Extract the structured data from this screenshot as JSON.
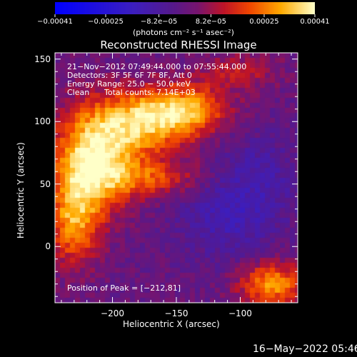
{
  "chart_data": {
    "type": "heatmap",
    "title": "Reconstructed RHESSI Image",
    "xlabel": "Heliocentric X (arcsec)",
    "ylabel": "Heliocentric Y (arcsec)",
    "xlim": [
      -245,
      -55
    ],
    "ylim": [
      -45,
      155
    ],
    "x_ticks": [
      "−200",
      "−150",
      "−100"
    ],
    "x_tick_values": [
      -200,
      -150,
      -100
    ],
    "y_ticks": [
      "0",
      "50",
      "100",
      "150"
    ],
    "y_tick_values": [
      0,
      50,
      100,
      150
    ],
    "colorbar": {
      "ticks": [
        "−0.00041",
        "−0.00025",
        "−8.2e−05",
        "8.2e−05",
        "0.00025",
        "0.00041"
      ],
      "tick_values": [
        -0.00041,
        -0.00025,
        -8.2e-05,
        8.2e-05,
        0.00025,
        0.00041
      ],
      "range": [
        -0.00041,
        0.00041
      ],
      "unit_label": "(photons cm⁻² s⁻¹ asec⁻²)"
    },
    "annotations": {
      "time_range": "21−Nov−2012 07:49:44.000 to 07:55:44.000",
      "detectors": "Detectors: 3F 5F 6F 7F 8F, Att 0",
      "energy_range": "Energy Range: 25.0 − 50.0 keV",
      "method": "Clean",
      "total_counts": "Total counts: 7.14E+03",
      "peak": "Position of Peak = [−212,81]"
    },
    "peak_position": [
      -212,
      81
    ],
    "hot_regions": [
      {
        "x": -215,
        "y": 70,
        "sx": 22,
        "sy": 28,
        "amp": 0.95
      },
      {
        "x": -175,
        "y": 100,
        "sx": 26,
        "sy": 18,
        "amp": 0.75
      },
      {
        "x": -140,
        "y": 110,
        "sx": 22,
        "sy": 14,
        "amp": 0.6
      },
      {
        "x": -230,
        "y": 20,
        "sx": 14,
        "sy": 24,
        "amp": 0.65
      },
      {
        "x": -170,
        "y": 55,
        "sx": 30,
        "sy": 10,
        "amp": 0.45
      },
      {
        "x": -75,
        "y": -30,
        "sx": 18,
        "sy": 12,
        "amp": 0.7
      },
      {
        "x": -100,
        "y": 140,
        "sx": 20,
        "sy": 10,
        "amp": 0.3
      }
    ],
    "cold_regions": [
      {
        "x": -110,
        "y": 25,
        "sx": 28,
        "sy": 24,
        "amp": -0.3
      },
      {
        "x": -85,
        "y": 60,
        "sx": 22,
        "sy": 22,
        "amp": -0.2
      }
    ]
  },
  "footer": {
    "datetime": "16−May−2022 05:46"
  }
}
